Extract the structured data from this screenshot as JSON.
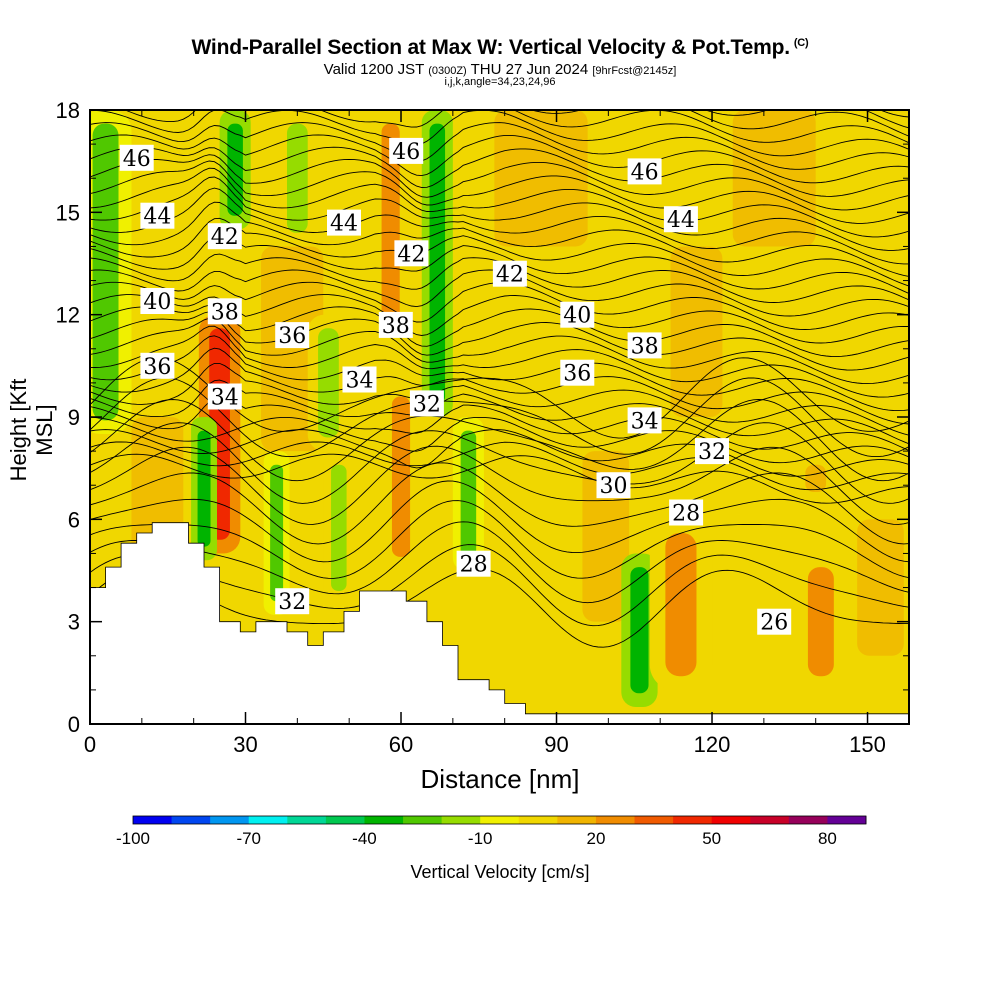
{
  "header": {
    "title": "Wind-Parallel Section at Max W: Vertical Velocity & Pot.Temp.",
    "copyright": "(C)",
    "valid_prefix": "Valid 1200 JST",
    "valid_utc": "(0300Z)",
    "valid_date": "THU 27 Jun 2024",
    "forecast": "[9hrFcst@2145z]",
    "params": "i,j,k,angle=34,23,24,96"
  },
  "chart_data": {
    "type": "heatmap",
    "xlabel": "Distance [nm]",
    "ylabel": "Height [Kft MSL]",
    "xlim": [
      0,
      158
    ],
    "ylim": [
      0,
      18
    ],
    "x_ticks": [
      0,
      30,
      60,
      90,
      120,
      150
    ],
    "y_ticks": [
      0,
      3,
      6,
      9,
      12,
      15,
      18
    ],
    "colorbar": {
      "label": "Vertical Velocity [cm/s]",
      "tick_labels": [
        -100,
        -70,
        -40,
        -10,
        20,
        50,
        80
      ],
      "bounds": [
        -100,
        90
      ],
      "step": 10,
      "colors": [
        "#0000f0",
        "#0046f0",
        "#0096f0",
        "#00f0f0",
        "#00d796",
        "#00c850",
        "#00b400",
        "#50c800",
        "#96dc00",
        "#f0f000",
        "#f0d700",
        "#f0b400",
        "#f08c00",
        "#f05a00",
        "#f02800",
        "#f00000",
        "#c80028",
        "#96005a",
        "#640096"
      ]
    },
    "w_columns": [
      {
        "x": 3,
        "w": 5,
        "value": -30,
        "y0": 8.5,
        "y1": 18
      },
      {
        "x": 25,
        "w": 4,
        "value": 40,
        "y0": 5,
        "y1": 12
      },
      {
        "x": 28,
        "w": 3,
        "value": -40,
        "y0": 14.5,
        "y1": 18
      },
      {
        "x": 22,
        "w": 2.5,
        "value": -40,
        "y0": 4.8,
        "y1": 9
      },
      {
        "x": 40,
        "w": 4,
        "value": -20,
        "y0": 14,
        "y1": 18
      },
      {
        "x": 36,
        "w": 2.5,
        "value": -30,
        "y0": 3.2,
        "y1": 8
      },
      {
        "x": 46,
        "w": 4,
        "value": -20,
        "y0": 8,
        "y1": 12
      },
      {
        "x": 48,
        "w": 3,
        "value": -20,
        "y0": 3.5,
        "y1": 8
      },
      {
        "x": 58,
        "w": 3.5,
        "value": 20,
        "y0": 11,
        "y1": 18
      },
      {
        "x": 60,
        "w": 3.5,
        "value": 20,
        "y0": 4.5,
        "y1": 10
      },
      {
        "x": 67,
        "w": 3,
        "value": -40,
        "y0": 9,
        "y1": 18
      },
      {
        "x": 73,
        "w": 3,
        "value": -30,
        "y0": 4.5,
        "y1": 9
      },
      {
        "x": 106,
        "w": 3.5,
        "value": -40,
        "y0": 0.5,
        "y1": 5
      },
      {
        "x": 114,
        "w": 6,
        "value": 20,
        "y0": 1,
        "y1": 6
      },
      {
        "x": 141,
        "w": 5,
        "value": 20,
        "y0": 1,
        "y1": 5
      },
      {
        "x": 140,
        "w": 2,
        "value": -10,
        "y0": 6.8,
        "y1": 7.6
      }
    ],
    "terrain": [
      [
        0,
        4
      ],
      [
        3,
        4
      ],
      [
        3,
        4.6
      ],
      [
        6,
        4.6
      ],
      [
        6,
        5.3
      ],
      [
        9,
        5.3
      ],
      [
        9,
        5.6
      ],
      [
        12,
        5.6
      ],
      [
        12,
        5.9
      ],
      [
        19,
        5.9
      ],
      [
        19,
        5.3
      ],
      [
        22,
        5.3
      ],
      [
        22,
        4.6
      ],
      [
        25,
        4.6
      ],
      [
        25,
        3
      ],
      [
        29,
        3
      ],
      [
        29,
        2.7
      ],
      [
        32,
        2.7
      ],
      [
        32,
        3
      ],
      [
        38,
        3
      ],
      [
        38,
        2.7
      ],
      [
        42,
        2.7
      ],
      [
        42,
        2.3
      ],
      [
        45,
        2.3
      ],
      [
        45,
        2.7
      ],
      [
        49,
        2.7
      ],
      [
        49,
        3.3
      ],
      [
        52,
        3.3
      ],
      [
        52,
        3.9
      ],
      [
        61,
        3.9
      ],
      [
        61,
        3.6
      ],
      [
        65,
        3.6
      ],
      [
        65,
        3
      ],
      [
        68,
        3
      ],
      [
        68,
        2.3
      ],
      [
        71,
        2.3
      ],
      [
        71,
        1.3
      ],
      [
        77,
        1.3
      ],
      [
        77,
        1
      ],
      [
        80,
        1
      ],
      [
        80,
        0.6
      ],
      [
        84,
        0.6
      ],
      [
        84,
        0.3
      ],
      [
        158,
        0.3
      ],
      [
        158,
        0
      ],
      [
        0,
        0
      ]
    ],
    "theta_levels": [
      {
        "theta": 26,
        "label_at": [
          132,
          3
        ],
        "label": "26"
      },
      {
        "theta": 28,
        "label_at": [
          74,
          4.7
        ],
        "label": "28"
      },
      {
        "theta": 28,
        "label_at": [
          115,
          6.2
        ],
        "label": "28"
      },
      {
        "theta": 30,
        "label_at": [
          101,
          7
        ],
        "label": "30"
      },
      {
        "theta": 32,
        "label_at": [
          39,
          3.6
        ],
        "label": "32"
      },
      {
        "theta": 32,
        "label_at": [
          65,
          9.4
        ],
        "label": "32"
      },
      {
        "theta": 32,
        "label_at": [
          120,
          8
        ],
        "label": "32"
      },
      {
        "theta": 34,
        "label_at": [
          26,
          9.6
        ],
        "label": "34"
      },
      {
        "theta": 34,
        "label_at": [
          52,
          10.1
        ],
        "label": "34"
      },
      {
        "theta": 34,
        "label_at": [
          107,
          8.9
        ],
        "label": "34"
      },
      {
        "theta": 36,
        "label_at": [
          13,
          10.5
        ],
        "label": "36"
      },
      {
        "theta": 36,
        "label_at": [
          39,
          11.4
        ],
        "label": "36"
      },
      {
        "theta": 36,
        "label_at": [
          94,
          10.3
        ],
        "label": "36"
      },
      {
        "theta": 38,
        "label_at": [
          26,
          12.1
        ],
        "label": "38"
      },
      {
        "theta": 38,
        "label_at": [
          59,
          11.7
        ],
        "label": "38"
      },
      {
        "theta": 38,
        "label_at": [
          107,
          11.1
        ],
        "label": "38"
      },
      {
        "theta": 40,
        "label_at": [
          13,
          12.4
        ],
        "label": "40"
      },
      {
        "theta": 40,
        "label_at": [
          94,
          12
        ],
        "label": "40"
      },
      {
        "theta": 42,
        "label_at": [
          26,
          14.3
        ],
        "label": "42"
      },
      {
        "theta": 42,
        "label_at": [
          62,
          13.8
        ],
        "label": "42"
      },
      {
        "theta": 42,
        "label_at": [
          81,
          13.2
        ],
        "label": "42"
      },
      {
        "theta": 44,
        "label_at": [
          13,
          14.9
        ],
        "label": "44"
      },
      {
        "theta": 44,
        "label_at": [
          49,
          14.7
        ],
        "label": "44"
      },
      {
        "theta": 44,
        "label_at": [
          114,
          14.8
        ],
        "label": "44"
      },
      {
        "theta": 46,
        "label_at": [
          9,
          16.6
        ],
        "label": "46"
      },
      {
        "theta": 46,
        "label_at": [
          61,
          16.8
        ],
        "label": "46"
      },
      {
        "theta": 46,
        "label_at": [
          107,
          16.2
        ],
        "label": "46"
      }
    ]
  }
}
